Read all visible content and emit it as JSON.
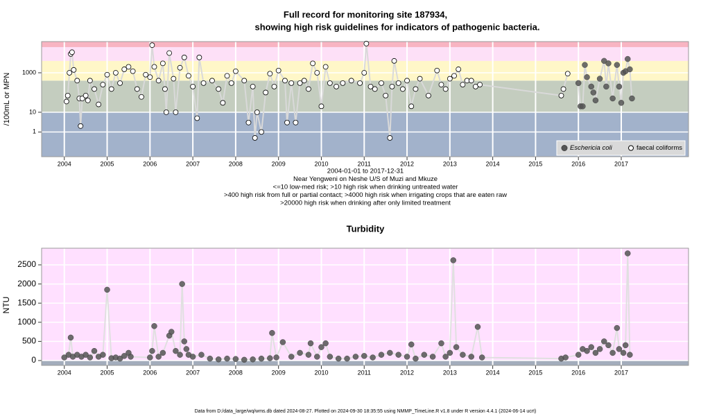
{
  "chart_data": [
    {
      "type": "line",
      "title": [
        "Full record for monitoring site 187934,",
        "showing high risk guidelines for indicators of pathogenic bacteria."
      ],
      "y_label": "/100mL or MPN",
      "notes": [
        "2004-01-01 to 2017-12-31",
        "Near Yengweni on Neshe U/S of Muzi and Mkuze",
        "<=10 low-med risk; >10 high risk when drinking untreated water",
        ">400 high risk from full or partial contact; >4000 high risk when irrigating crops that are eaten raw",
        ">20000 high risk when drinking after only limited treatment"
      ],
      "log_y": true,
      "xlim": [
        2003.47,
        2018.57
      ],
      "xticks": [
        2004,
        2005,
        2006,
        2007,
        2008,
        2009,
        2010,
        2011,
        2012,
        2013,
        2014,
        2015,
        2016,
        2017
      ],
      "ylim": [
        0.056,
        38000
      ],
      "yticks": [
        1,
        10,
        1000
      ],
      "grid": true,
      "line_color": "#d9d9d9",
      "bands": [
        {
          "from": 0.056,
          "to": 10,
          "color": "#a2b2cb"
        },
        {
          "from": 10,
          "to": 400,
          "color": "#c4cdbf"
        },
        {
          "from": 400,
          "to": 4000,
          "color": "#fff7c8"
        },
        {
          "from": 4000,
          "to": 20000,
          "color": "#fde0f7"
        },
        {
          "from": 20000,
          "to": 38000,
          "color": "#f8b4c2"
        }
      ],
      "legend": "bottom-right",
      "series": [
        {
          "name": "Eschericia coli",
          "color": "#555555",
          "marker": "filled",
          "x": [
            2016.0,
            2016.05,
            2016.1,
            2016.15,
            2016.2,
            2016.3,
            2016.35,
            2016.4,
            2016.5,
            2016.6,
            2016.65,
            2016.7,
            2016.8,
            2016.9,
            2016.95,
            2017.0,
            2017.05,
            2017.1,
            2017.15,
            2017.2,
            2017.25
          ],
          "values": [
            300,
            20,
            20,
            2500,
            600,
            200,
            100,
            40,
            500,
            4000,
            200,
            3000,
            50,
            2500,
            200,
            30,
            1000,
            1200,
            5000,
            1500,
            50
          ]
        },
        {
          "name": "faecal coliforms",
          "color": "#000000",
          "marker": "open",
          "x": [
            2004.05,
            2004.08,
            2004.12,
            2004.15,
            2004.18,
            2004.22,
            2004.3,
            2004.35,
            2004.38,
            2004.42,
            2004.5,
            2004.55,
            2004.6,
            2004.7,
            2004.8,
            2004.9,
            2005.0,
            2005.1,
            2005.2,
            2005.3,
            2005.4,
            2005.5,
            2005.6,
            2005.7,
            2005.8,
            2005.9,
            2006.0,
            2006.05,
            2006.1,
            2006.2,
            2006.3,
            2006.35,
            2006.38,
            2006.45,
            2006.55,
            2006.6,
            2006.7,
            2006.8,
            2006.9,
            2007.0,
            2007.1,
            2007.15,
            2007.25,
            2007.45,
            2007.6,
            2007.7,
            2007.8,
            2007.9,
            2008.0,
            2008.2,
            2008.3,
            2008.4,
            2008.45,
            2008.5,
            2008.6,
            2008.7,
            2008.8,
            2008.9,
            2009.0,
            2009.15,
            2009.2,
            2009.3,
            2009.4,
            2009.5,
            2009.6,
            2009.7,
            2009.8,
            2009.9,
            2010.0,
            2010.1,
            2010.2,
            2010.35,
            2010.5,
            2010.7,
            2010.9,
            2011.0,
            2011.05,
            2011.15,
            2011.25,
            2011.4,
            2011.5,
            2011.6,
            2011.65,
            2011.7,
            2011.8,
            2011.9,
            2012.0,
            2012.1,
            2012.2,
            2012.3,
            2012.5,
            2012.7,
            2012.8,
            2012.9,
            2013.0,
            2013.1,
            2013.2,
            2013.3,
            2013.4,
            2013.5,
            2013.6,
            2013.7,
            2015.6,
            2015.65,
            2015.75
          ],
          "values": [
            35,
            70,
            1000,
            9000,
            11000,
            1400,
            400,
            50,
            2,
            50,
            70,
            40,
            400,
            150,
            25,
            250,
            800,
            150,
            1000,
            300,
            1500,
            2000,
            1200,
            150,
            60,
            800,
            600,
            25000,
            2000,
            400,
            3000,
            150,
            10,
            10000,
            500,
            10,
            1800,
            6000,
            700,
            200,
            5,
            6000,
            300,
            400,
            150,
            30,
            700,
            300,
            1200,
            400,
            3,
            200,
            0.5,
            10,
            1,
            100,
            900,
            200,
            1300,
            400,
            3,
            300,
            3,
            300,
            400,
            150,
            3000,
            1000,
            20,
            2000,
            300,
            200,
            300,
            400,
            300,
            1000,
            30000,
            200,
            150,
            300,
            70,
            0.5,
            200,
            4000,
            300,
            150,
            400,
            20,
            150,
            500,
            70,
            1300,
            250,
            150,
            500,
            700,
            1500,
            250,
            400,
            400,
            200,
            250,
            70,
            150,
            900
          ]
        }
      ]
    },
    {
      "type": "line",
      "title": [
        "Turbidity"
      ],
      "y_label": "NTU",
      "log_y": false,
      "xlim": [
        2003.47,
        2018.57
      ],
      "xticks": [
        2004,
        2005,
        2006,
        2007,
        2008,
        2009,
        2010,
        2011,
        2012,
        2013,
        2014,
        2015,
        2016,
        2017
      ],
      "ylim": [
        -127,
        2935
      ],
      "yticks": [
        0,
        500,
        1000,
        1500,
        2000,
        2500
      ],
      "grid": true,
      "line_color": "#e0e0e0",
      "bands": [
        {
          "from": -127,
          "to": 5,
          "color": "#a3adbc"
        },
        {
          "from": 5,
          "to": 2935,
          "color": "#ffe0ff"
        }
      ],
      "series": [
        {
          "name": "Turbidity",
          "color": "#555555",
          "marker": "filled",
          "x": [
            2004.0,
            2004.1,
            2004.15,
            2004.2,
            2004.3,
            2004.4,
            2004.5,
            2004.6,
            2004.7,
            2004.8,
            2004.9,
            2005.0,
            2005.1,
            2005.2,
            2005.3,
            2005.4,
            2005.5,
            2005.55,
            2006.0,
            2006.05,
            2006.1,
            2006.2,
            2006.3,
            2006.45,
            2006.5,
            2006.6,
            2006.7,
            2006.75,
            2006.8,
            2006.85,
            2006.9,
            2007.0,
            2007.2,
            2007.4,
            2007.6,
            2007.8,
            2008.0,
            2008.2,
            2008.4,
            2008.6,
            2008.8,
            2008.85,
            2008.95,
            2009.1,
            2009.3,
            2009.5,
            2009.7,
            2009.75,
            2009.9,
            2010.0,
            2010.1,
            2010.2,
            2010.4,
            2010.6,
            2010.8,
            2011.0,
            2011.2,
            2011.4,
            2011.6,
            2011.8,
            2012.0,
            2012.1,
            2012.2,
            2012.4,
            2012.6,
            2012.8,
            2012.9,
            2013.0,
            2013.08,
            2013.15,
            2013.3,
            2013.5,
            2013.65,
            2013.75,
            2015.6,
            2015.7,
            2016.0,
            2016.1,
            2016.2,
            2016.3,
            2016.4,
            2016.5,
            2016.6,
            2016.7,
            2016.8,
            2016.9,
            2016.95,
            2017.05,
            2017.1,
            2017.15,
            2017.2
          ],
          "values": [
            80,
            150,
            600,
            100,
            150,
            100,
            150,
            80,
            250,
            100,
            150,
            1850,
            60,
            80,
            50,
            120,
            200,
            100,
            80,
            250,
            900,
            100,
            200,
            650,
            750,
            250,
            150,
            2000,
            500,
            300,
            150,
            100,
            150,
            50,
            30,
            50,
            40,
            20,
            30,
            50,
            60,
            720,
            80,
            480,
            100,
            200,
            150,
            450,
            100,
            350,
            450,
            100,
            50,
            50,
            100,
            120,
            80,
            150,
            200,
            150,
            100,
            420,
            50,
            150,
            100,
            450,
            100,
            200,
            2620,
            350,
            150,
            100,
            880,
            80,
            50,
            80,
            150,
            300,
            250,
            350,
            200,
            300,
            500,
            400,
            200,
            850,
            300,
            200,
            400,
            2800,
            150
          ]
        }
      ]
    }
  ],
  "footer": "Data from D:/data_large/wq/wms.db dated 2024-08-27. Plotted on 2024-09-30 18:35:55 using NMMP_TimeLine.R v1.8 under R version 4.4.1 (2024-06-14 ucrt)"
}
